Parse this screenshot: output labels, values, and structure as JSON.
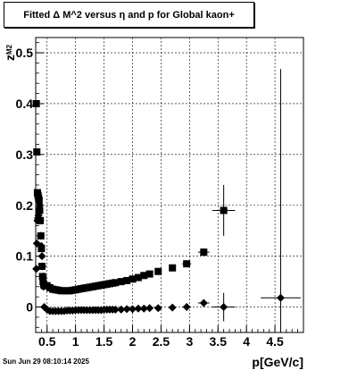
{
  "title": "Fitted Δ M^2 versus η and p for Global kaon+",
  "footer": "Sun Jun 29 08:10:14 2025",
  "chart_data": {
    "type": "scatter",
    "title": "Fitted Δ M^2 versus η and p for Global kaon+",
    "xlabel": "p[GeV/c]",
    "ylabel": "z_{M2}",
    "xlim": [
      0.3,
      5.0
    ],
    "ylim": [
      -0.05,
      0.53
    ],
    "grid": true,
    "x_ticks": [
      "0.5",
      "1",
      "1.5",
      "2",
      "2.5",
      "3",
      "3.5",
      "4",
      "4.5"
    ],
    "y_ticks": [
      "0",
      "0.1",
      "0.2",
      "0.3",
      "0.4",
      "0.5"
    ],
    "series": [
      {
        "marker": "square",
        "x": [
          0.31,
          0.32,
          0.33,
          0.34,
          0.35,
          0.36,
          0.37,
          0.38,
          0.39,
          0.4,
          0.41,
          0.42,
          0.43,
          0.44,
          0.45,
          0.5,
          0.55,
          0.6,
          0.65,
          0.7,
          0.75,
          0.8,
          0.85,
          0.9,
          0.95,
          1.0,
          1.05,
          1.1,
          1.15,
          1.2,
          1.25,
          1.3,
          1.35,
          1.4,
          1.45,
          1.5,
          1.55,
          1.6,
          1.65,
          1.7,
          1.8,
          1.9,
          2.0,
          2.1,
          2.2,
          2.3,
          2.45,
          2.7,
          2.95,
          3.25,
          3.6
        ],
        "y": [
          0.4,
          0.305,
          0.225,
          0.22,
          0.215,
          0.21,
          0.19,
          0.17,
          0.14,
          0.115,
          0.08,
          0.06,
          0.05,
          0.045,
          0.042,
          0.042,
          0.038,
          0.035,
          0.034,
          0.033,
          0.032,
          0.032,
          0.032,
          0.032,
          0.033,
          0.034,
          0.035,
          0.036,
          0.037,
          0.038,
          0.039,
          0.04,
          0.041,
          0.042,
          0.043,
          0.044,
          0.045,
          0.046,
          0.047,
          0.048,
          0.05,
          0.052,
          0.055,
          0.058,
          0.062,
          0.065,
          0.07,
          0.077,
          0.085,
          0.108,
          0.19
        ],
        "y_err": [
          0,
          0,
          0,
          0,
          0,
          0,
          0,
          0,
          0,
          0,
          0,
          0,
          0,
          0,
          0,
          0,
          0,
          0,
          0,
          0,
          0,
          0,
          0,
          0,
          0,
          0,
          0,
          0,
          0,
          0,
          0,
          0,
          0,
          0,
          0,
          0,
          0,
          0,
          0,
          0,
          0,
          0,
          0,
          0,
          0,
          0,
          0,
          0,
          0,
          0.003,
          0.05
        ],
        "x_err": [
          0,
          0,
          0,
          0,
          0,
          0,
          0,
          0,
          0,
          0,
          0,
          0,
          0,
          0,
          0,
          0,
          0,
          0,
          0,
          0,
          0,
          0,
          0,
          0,
          0,
          0,
          0,
          0,
          0,
          0,
          0,
          0,
          0,
          0,
          0,
          0,
          0,
          0,
          0,
          0,
          0,
          0,
          0,
          0,
          0,
          0,
          0,
          0.05,
          0.08,
          0.1,
          0.2
        ]
      },
      {
        "marker": "diamond",
        "x": [
          0.31,
          0.32,
          0.33,
          0.34,
          0.35,
          0.36,
          0.37,
          0.38,
          0.39,
          0.4,
          0.41,
          0.42,
          0.43,
          0.44,
          0.45,
          0.5,
          0.55,
          0.6,
          0.65,
          0.7,
          0.75,
          0.8,
          0.85,
          0.9,
          0.95,
          1.0,
          1.05,
          1.1,
          1.15,
          1.2,
          1.25,
          1.3,
          1.35,
          1.4,
          1.45,
          1.5,
          1.55,
          1.6,
          1.65,
          1.7,
          1.8,
          1.9,
          2.0,
          2.1,
          2.2,
          2.3,
          2.45,
          2.7,
          2.95,
          3.25,
          3.6,
          4.6
        ],
        "y": [
          0.075,
          0.125,
          0.17,
          0.175,
          0.18,
          0.19,
          0.2,
          0.17,
          0.14,
          0.12,
          0.1,
          0.08,
          0.06,
          0.04,
          0.0,
          -0.005,
          -0.008,
          -0.008,
          -0.008,
          -0.008,
          -0.008,
          -0.008,
          -0.007,
          -0.007,
          -0.007,
          -0.006,
          -0.006,
          -0.006,
          -0.006,
          -0.006,
          -0.006,
          -0.006,
          -0.006,
          -0.006,
          -0.006,
          -0.005,
          -0.005,
          -0.005,
          -0.005,
          -0.005,
          -0.005,
          -0.004,
          -0.004,
          -0.003,
          -0.003,
          -0.002,
          -0.002,
          -0.001,
          0.0,
          0.008,
          0.0,
          0.018
        ],
        "y_err": [
          0,
          0,
          0,
          0,
          0,
          0,
          0,
          0,
          0,
          0,
          0,
          0,
          0,
          0,
          0,
          0,
          0,
          0,
          0,
          0,
          0,
          0,
          0,
          0,
          0,
          0,
          0,
          0,
          0,
          0,
          0,
          0,
          0,
          0,
          0,
          0,
          0,
          0,
          0,
          0,
          0,
          0,
          0,
          0,
          0,
          0,
          0,
          0,
          0,
          0.003,
          0.028,
          0.45
        ],
        "x_err": [
          0,
          0,
          0,
          0,
          0,
          0,
          0,
          0,
          0,
          0,
          0,
          0,
          0,
          0,
          0,
          0,
          0,
          0,
          0,
          0,
          0,
          0,
          0,
          0,
          0,
          0,
          0,
          0,
          0,
          0,
          0,
          0,
          0,
          0,
          0,
          0,
          0,
          0,
          0,
          0,
          0,
          0,
          0,
          0,
          0,
          0,
          0,
          0.05,
          0.08,
          0.1,
          0.2,
          0.35
        ]
      }
    ]
  }
}
